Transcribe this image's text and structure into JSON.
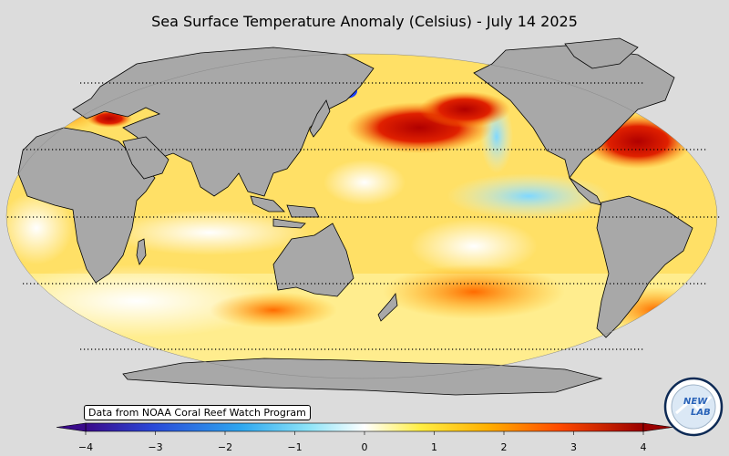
{
  "title": "Sea Surface Temperature Anomaly (Celsius) - July 14 2025",
  "credit": "Data from NOAA Coral Reef Watch Program",
  "colorbar": {
    "ticks": [
      "−4",
      "−3",
      "−2",
      "−1",
      "0",
      "1",
      "2",
      "3",
      "4"
    ],
    "range": [
      -4,
      4
    ],
    "colors": [
      "#3a0a8a",
      "#2a48d8",
      "#2ea8f0",
      "#8ee4f8",
      "#ffffff",
      "#ffee44",
      "#ffb000",
      "#ff4a00",
      "#b00000"
    ]
  },
  "logo": {
    "line1": "NEW",
    "line2": "LAB"
  },
  "map": {
    "ocean_color": "#ffe066",
    "land_color": "#a8a8a8",
    "background_color": "#dcdcdc"
  }
}
